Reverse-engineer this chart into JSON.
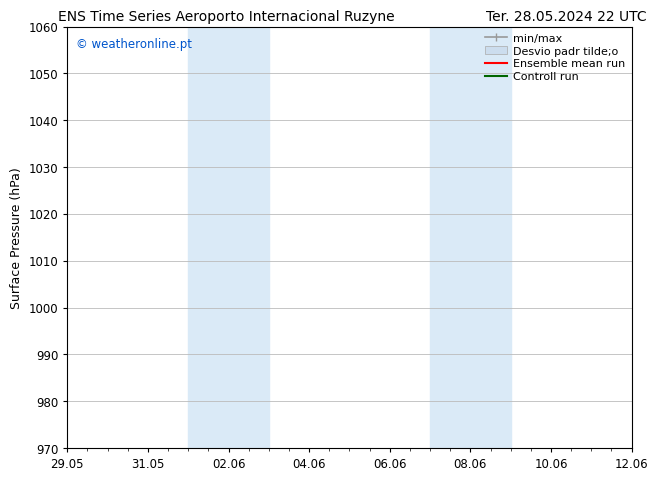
{
  "title_left": "ENS Time Series Aeroporto Internacional Ruzyne",
  "title_right": "Ter. 28.05.2024 22 UTC",
  "ylabel": "Surface Pressure (hPa)",
  "ylim": [
    970,
    1060
  ],
  "yticks": [
    970,
    980,
    990,
    1000,
    1010,
    1020,
    1030,
    1040,
    1050,
    1060
  ],
  "xlim_start": 0,
  "xlim_end": 14,
  "xtick_labels": [
    "29.05",
    "31.05",
    "02.06",
    "04.06",
    "06.06",
    "08.06",
    "10.06",
    "12.06"
  ],
  "xtick_positions": [
    0,
    2,
    4,
    6,
    8,
    10,
    12,
    14
  ],
  "shaded_bands": [
    {
      "x_start": 3.0,
      "x_end": 5.0
    },
    {
      "x_start": 9.0,
      "x_end": 11.0
    }
  ],
  "shaded_color": "#daeaf7",
  "bg_color": "#ffffff",
  "watermark_text": "© weatheronline.pt",
  "watermark_color": "#0055cc",
  "legend_labels": [
    "min/max",
    "Desvio padr tilde;o",
    "Ensemble mean run",
    "Controll run"
  ],
  "legend_colors": [
    "#999999",
    "#ccddee",
    "#ff0000",
    "#006600"
  ],
  "grid_color": "#bbbbbb",
  "title_fontsize": 10,
  "axis_label_fontsize": 9,
  "tick_fontsize": 8.5,
  "legend_fontsize": 8
}
